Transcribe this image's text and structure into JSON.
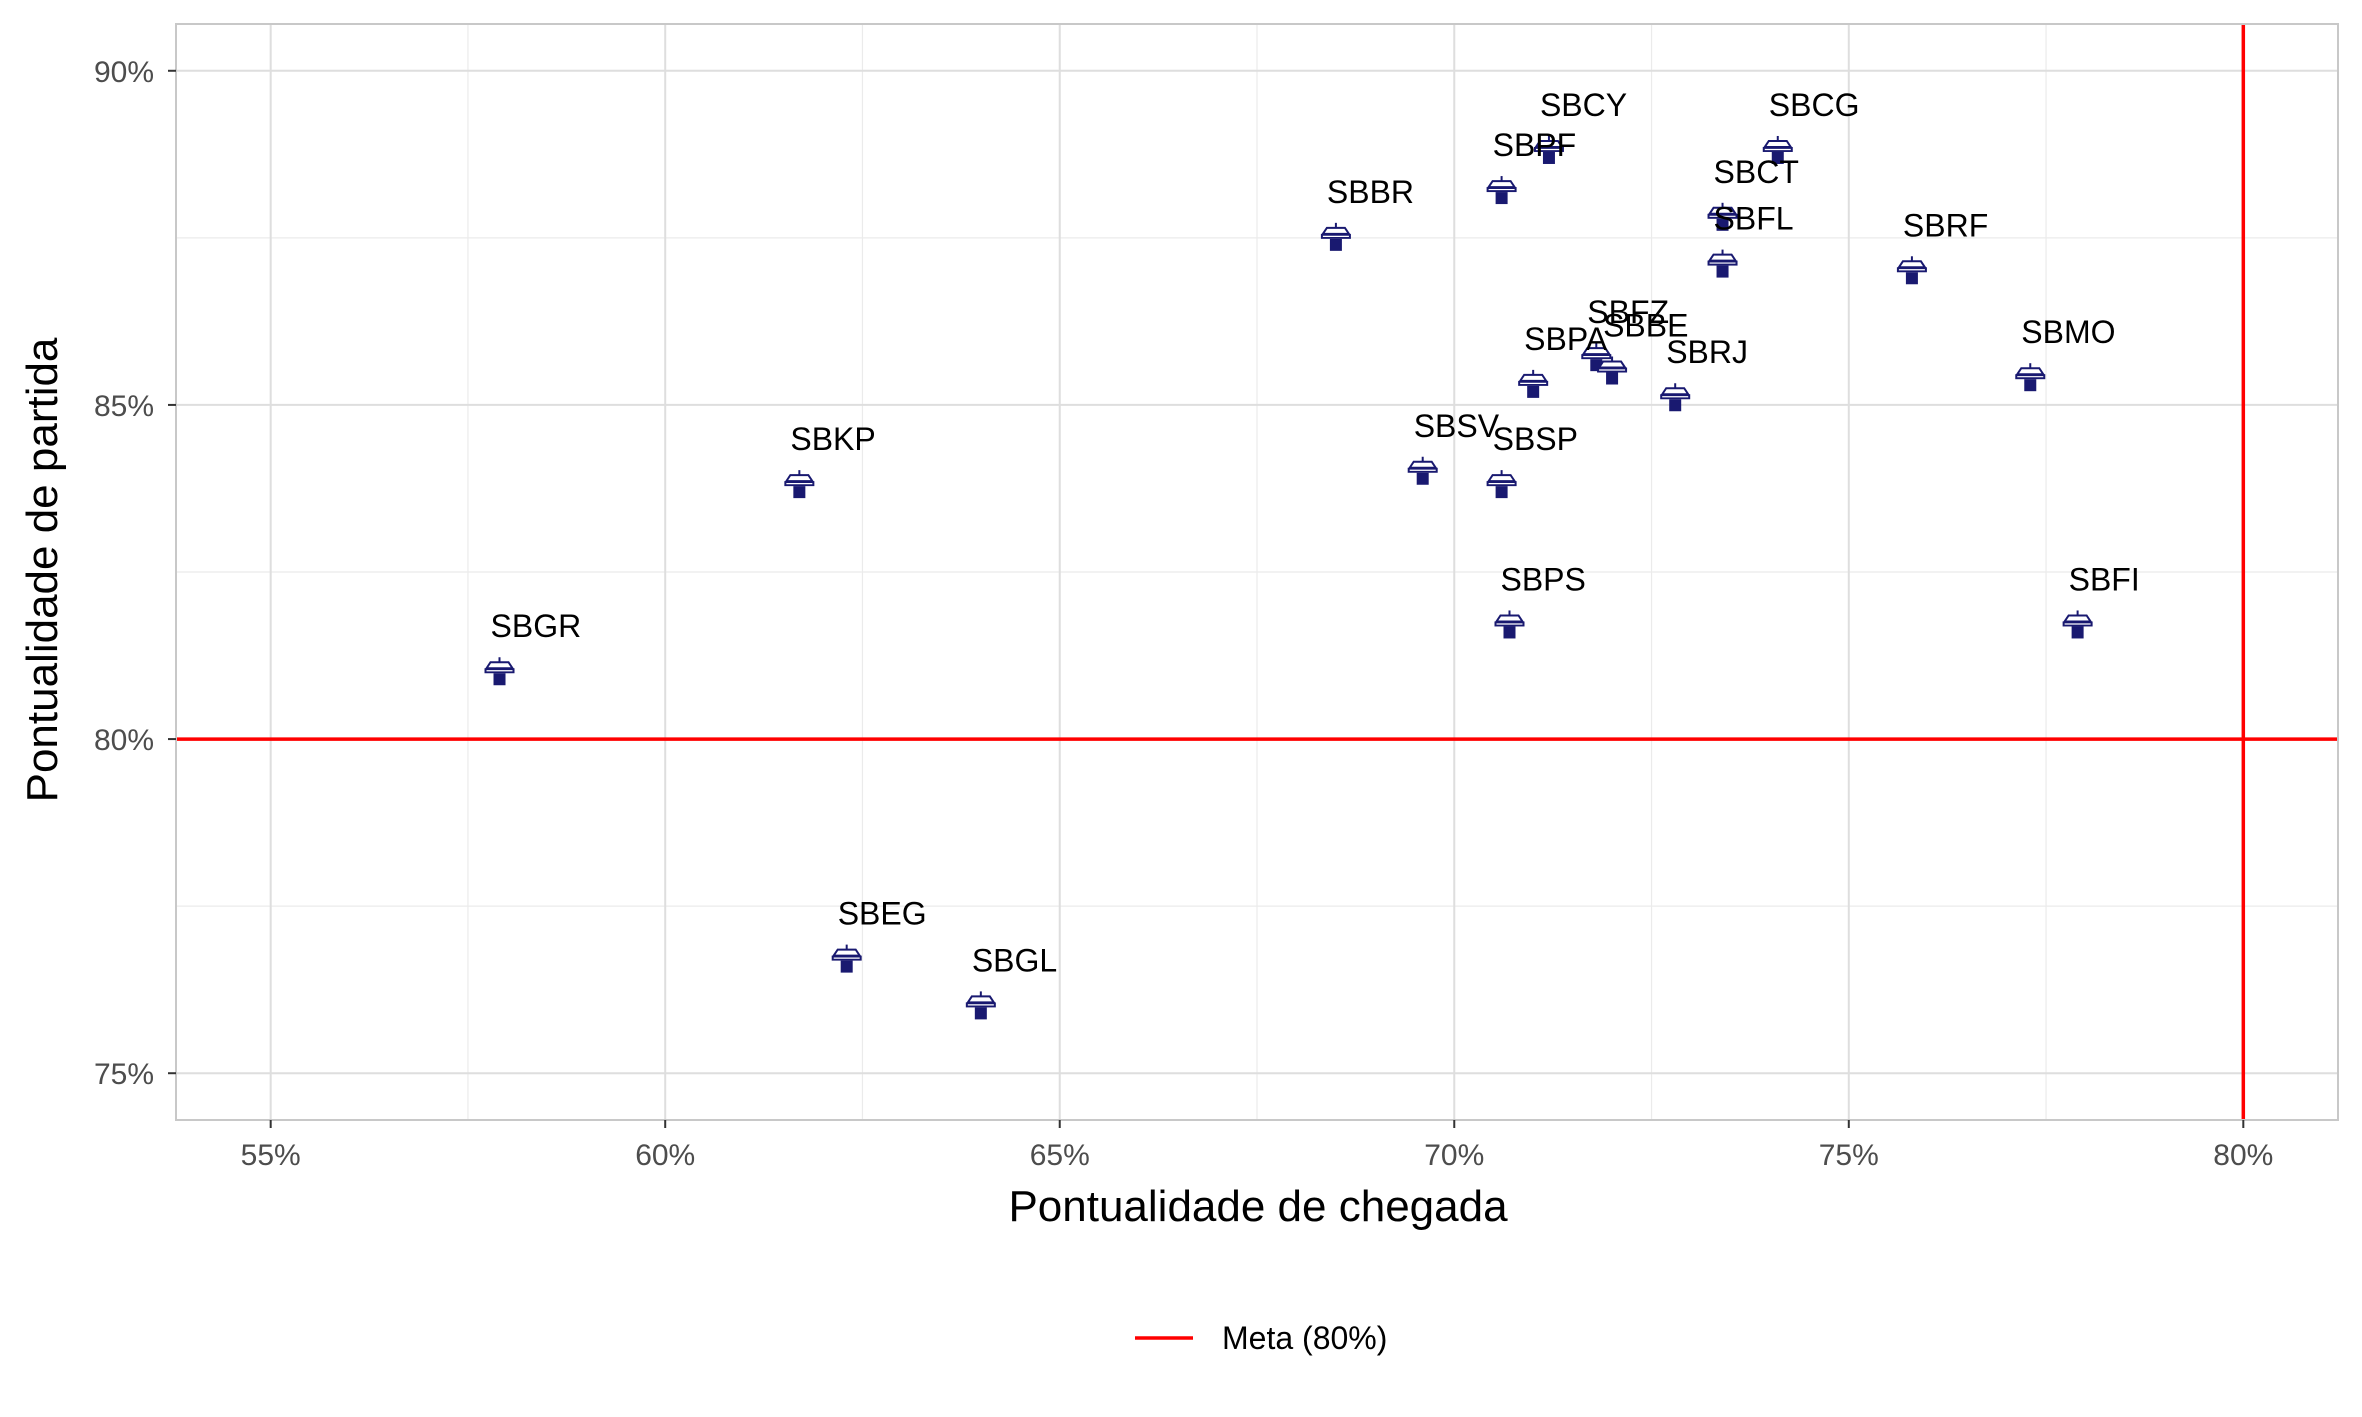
{
  "chart_data": {
    "type": "scatter",
    "title": "",
    "xlabel": "Pontualidade de chegada",
    "ylabel": "Pontualidade de partida",
    "xlim": [
      0.538,
      0.812
    ],
    "ylim": [
      0.743,
      0.907
    ],
    "x_ticks": [
      {
        "value": 0.55,
        "label": "55%"
      },
      {
        "value": 0.6,
        "label": "60%"
      },
      {
        "value": 0.65,
        "label": "65%"
      },
      {
        "value": 0.7,
        "label": "70%"
      },
      {
        "value": 0.75,
        "label": "75%"
      },
      {
        "value": 0.8,
        "label": "80%"
      }
    ],
    "y_ticks": [
      {
        "value": 0.75,
        "label": "75%"
      },
      {
        "value": 0.8,
        "label": "80%"
      },
      {
        "value": 0.85,
        "label": "85%"
      },
      {
        "value": 0.9,
        "label": "90%"
      }
    ],
    "grid": true,
    "marker": "airport-tower-icon",
    "marker_color": "#191970",
    "points": [
      {
        "label": "SBGR",
        "x": 0.579,
        "y": 0.81
      },
      {
        "label": "SBKP",
        "x": 0.617,
        "y": 0.838
      },
      {
        "label": "SBEG",
        "x": 0.623,
        "y": 0.767
      },
      {
        "label": "SBGL",
        "x": 0.64,
        "y": 0.76
      },
      {
        "label": "SBBR",
        "x": 0.685,
        "y": 0.875
      },
      {
        "label": "SBSV",
        "x": 0.696,
        "y": 0.84
      },
      {
        "label": "SBSP",
        "x": 0.706,
        "y": 0.838
      },
      {
        "label": "SBPF",
        "x": 0.706,
        "y": 0.882
      },
      {
        "label": "SBPS",
        "x": 0.707,
        "y": 0.817
      },
      {
        "label": "SBPA",
        "x": 0.71,
        "y": 0.853
      },
      {
        "label": "SBCY",
        "x": 0.712,
        "y": 0.888
      },
      {
        "label": "SBFZ",
        "x": 0.718,
        "y": 0.857
      },
      {
        "label": "SBBE",
        "x": 0.72,
        "y": 0.855
      },
      {
        "label": "SBRJ",
        "x": 0.728,
        "y": 0.851
      },
      {
        "label": "SBCT",
        "x": 0.734,
        "y": 0.878
      },
      {
        "label": "SBFL",
        "x": 0.734,
        "y": 0.871
      },
      {
        "label": "SBCG",
        "x": 0.741,
        "y": 0.888
      },
      {
        "label": "SBRF",
        "x": 0.758,
        "y": 0.87
      },
      {
        "label": "SBMO",
        "x": 0.773,
        "y": 0.854
      },
      {
        "label": "SBFI",
        "x": 0.779,
        "y": 0.817
      }
    ],
    "reference_lines": [
      {
        "axis": "y",
        "value": 0.8,
        "color": "#ff0000"
      },
      {
        "axis": "x",
        "value": 0.8,
        "color": "#ff0000"
      }
    ],
    "legend": {
      "position": "bottom",
      "entries": [
        {
          "label": "Meta (80%)",
          "color": "#ff0000"
        }
      ]
    }
  }
}
